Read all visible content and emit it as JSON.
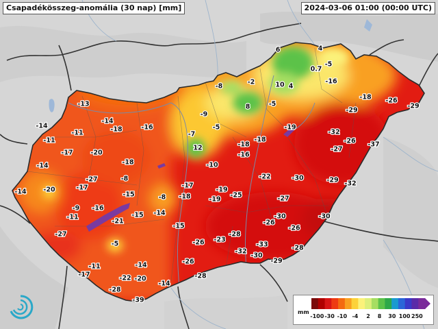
{
  "header": {
    "title": "Csapadékösszeg-anomália (30 nap) [mm]",
    "timestamp": "2024-03-06 01:00 (00:00 UTC)"
  },
  "legend": {
    "unit": "mm",
    "colors": [
      "#7a0a0a",
      "#b00000",
      "#d81515",
      "#ee3a12",
      "#f46a10",
      "#f9a020",
      "#fcd23a",
      "#fbf27a",
      "#dcef7a",
      "#a6de62",
      "#5cc24a",
      "#2ea84a",
      "#1a9ad0",
      "#2a66d8",
      "#3a3ac8",
      "#5a2aa8",
      "#7a2a9a"
    ],
    "ticks": [
      {
        "label": "-100",
        "at": 0.05
      },
      {
        "label": "-30",
        "at": 0.16
      },
      {
        "label": "-10",
        "at": 0.27
      },
      {
        "label": "-4",
        "at": 0.385
      },
      {
        "label": "2",
        "at": 0.5
      },
      {
        "label": "8",
        "at": 0.6
      },
      {
        "label": "30",
        "at": 0.71
      },
      {
        "label": "100",
        "at": 0.82
      },
      {
        "label": "250",
        "at": 0.93
      }
    ]
  },
  "logo": {
    "icon": "met-service-swirl-logo"
  },
  "stations": [
    {
      "v": "6"
    },
    {
      "v": "4"
    },
    {
      "v": "-5"
    },
    {
      "v": "0.7"
    },
    {
      "v": "-16"
    },
    {
      "v": "-2"
    },
    {
      "v": "10"
    },
    {
      "v": "4"
    },
    {
      "v": "-8"
    },
    {
      "v": "8"
    },
    {
      "v": "-5"
    },
    {
      "v": "-18"
    },
    {
      "v": "-26"
    },
    {
      "v": "-29"
    },
    {
      "v": "-13"
    },
    {
      "v": "-9"
    },
    {
      "v": "-29"
    },
    {
      "v": "-14"
    },
    {
      "v": "-14"
    },
    {
      "v": "-18"
    },
    {
      "v": "-16"
    },
    {
      "v": "-5"
    },
    {
      "v": "-19"
    },
    {
      "v": "-11"
    },
    {
      "v": "-7"
    },
    {
      "v": "-32"
    },
    {
      "v": "-11"
    },
    {
      "v": "12"
    },
    {
      "v": "-18"
    },
    {
      "v": "-18"
    },
    {
      "v": "-26"
    },
    {
      "v": "-37"
    },
    {
      "v": "-17"
    },
    {
      "v": "-20"
    },
    {
      "v": "-16"
    },
    {
      "v": "-27"
    },
    {
      "v": "-14"
    },
    {
      "v": "-18"
    },
    {
      "v": "-10"
    },
    {
      "v": "-22"
    },
    {
      "v": "-30"
    },
    {
      "v": "-29"
    },
    {
      "v": "-32"
    },
    {
      "v": "-27"
    },
    {
      "v": "-17"
    },
    {
      "v": "-14"
    },
    {
      "v": "-20"
    },
    {
      "v": "-8"
    },
    {
      "v": "-17"
    },
    {
      "v": "-15"
    },
    {
      "v": "-8"
    },
    {
      "v": "-18"
    },
    {
      "v": "-19"
    },
    {
      "v": "-19"
    },
    {
      "v": "-25"
    },
    {
      "v": "-27"
    },
    {
      "v": "-9"
    },
    {
      "v": "-16"
    },
    {
      "v": "-11"
    },
    {
      "v": "-21"
    },
    {
      "v": "-15"
    },
    {
      "v": "-14"
    },
    {
      "v": "-30"
    },
    {
      "v": "-30"
    },
    {
      "v": "-26"
    },
    {
      "v": "-15"
    },
    {
      "v": "-27"
    },
    {
      "v": "-26"
    },
    {
      "v": "-28"
    },
    {
      "v": "-26"
    },
    {
      "v": "-23"
    },
    {
      "v": "-5"
    },
    {
      "v": "-33"
    },
    {
      "v": "-32"
    },
    {
      "v": "-28"
    },
    {
      "v": "-30"
    },
    {
      "v": "-26"
    },
    {
      "v": "-11"
    },
    {
      "v": "-14"
    },
    {
      "v": "-29"
    },
    {
      "v": "-17"
    },
    {
      "v": "-22"
    },
    {
      "v": "-20"
    },
    {
      "v": "-28"
    },
    {
      "v": "-14"
    },
    {
      "v": "-28"
    },
    {
      "v": "-39"
    }
  ]
}
